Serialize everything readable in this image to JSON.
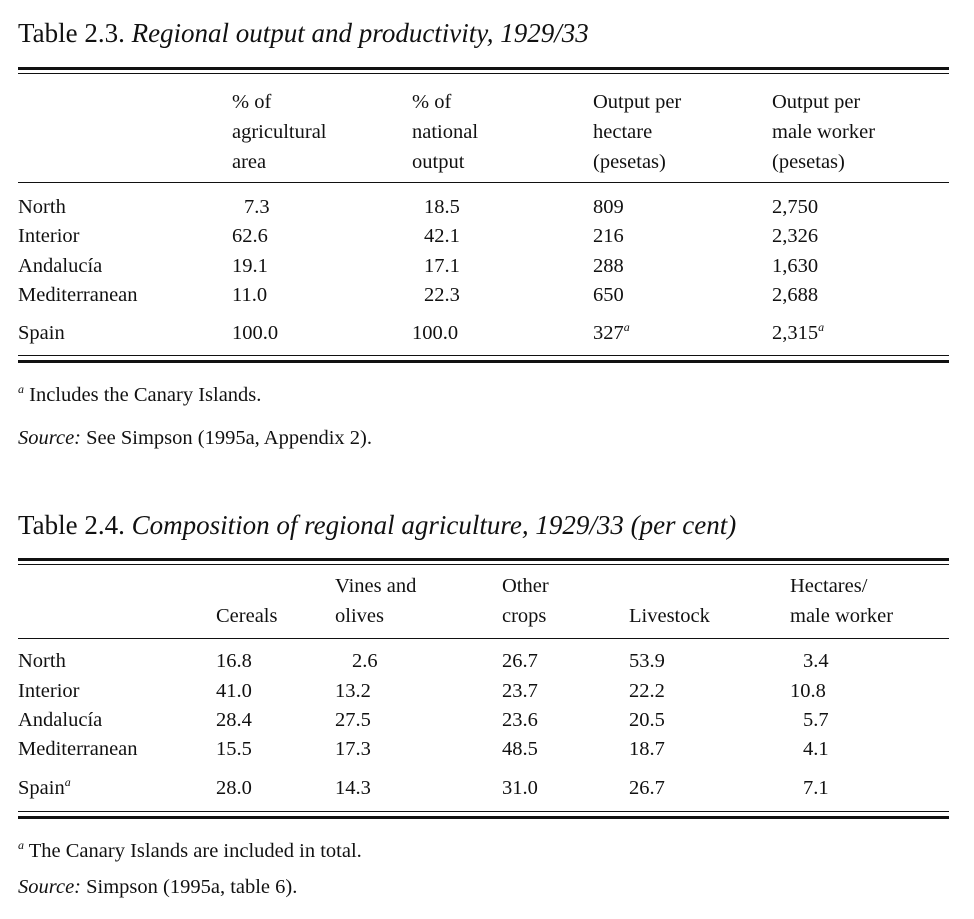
{
  "table23": {
    "number": "Table 2.3.",
    "title": "Regional output and productivity, 1929/33",
    "headers": [
      [
        "% of",
        "agricultural",
        "area"
      ],
      [
        "% of",
        "national",
        "output"
      ],
      [
        "Output per",
        "hectare",
        "(pesetas)"
      ],
      [
        "Output per",
        "male worker",
        "(pesetas)"
      ]
    ],
    "rows": [
      {
        "region": "North",
        "values": [
          "7.3",
          "18.5",
          "809",
          "2,750"
        ]
      },
      {
        "region": "Interior",
        "values": [
          "62.6",
          "42.1",
          "216",
          "2,326"
        ]
      },
      {
        "region": "Andalucía",
        "values": [
          "19.1",
          "17.1",
          "288",
          "1,630"
        ]
      },
      {
        "region": "Mediterranean",
        "values": [
          "11.0",
          "22.3",
          "650",
          "2,688"
        ]
      }
    ],
    "total": {
      "region": "Spain",
      "values": [
        "100.0",
        "100.0",
        "327",
        "2,315"
      ],
      "value_marks": [
        "",
        "",
        "a",
        "a"
      ]
    },
    "footnote": {
      "mark": "a",
      "text": "Includes the Canary Islands."
    },
    "source": {
      "label": "Source:",
      "text": "See Simpson (1995a, Appendix 2)."
    }
  },
  "table24": {
    "number": "Table 2.4.",
    "title": "Composition of regional agriculture, 1929/33 (per cent)",
    "headers": [
      [
        "",
        "Cereals"
      ],
      [
        "Vines and",
        "olives"
      ],
      [
        "Other",
        "crops"
      ],
      [
        "",
        "Livestock"
      ],
      [
        "Hectares/",
        "male worker"
      ]
    ],
    "rows": [
      {
        "region": "North",
        "values": [
          "16.8",
          "2.6",
          "26.7",
          "53.9",
          "3.4"
        ]
      },
      {
        "region": "Interior",
        "values": [
          "41.0",
          "13.2",
          "23.7",
          "22.2",
          "10.8"
        ]
      },
      {
        "region": "Andalucía",
        "values": [
          "28.4",
          "27.5",
          "23.6",
          "20.5",
          "5.7"
        ]
      },
      {
        "region": "Mediterranean",
        "values": [
          "15.5",
          "17.3",
          "48.5",
          "18.7",
          "4.1"
        ]
      }
    ],
    "total": {
      "region": "Spain",
      "region_mark": "a",
      "values": [
        "28.0",
        "14.3",
        "31.0",
        "26.7",
        "7.1"
      ]
    },
    "footnote": {
      "mark": "a",
      "text": "The Canary Islands are included in total."
    },
    "source": {
      "label": "Source:",
      "text": "Simpson (1995a, table 6)."
    }
  }
}
